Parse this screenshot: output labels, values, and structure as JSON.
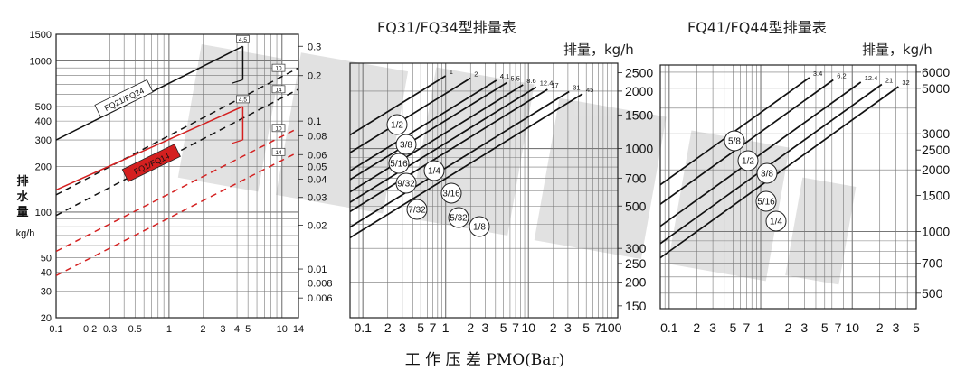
{
  "caption": "工 作 压 差 PMO(Bar)",
  "chart_data": [
    {
      "type": "line",
      "id": "fq21",
      "xlim": [
        0.1,
        14
      ],
      "ylim": [
        20,
        1500
      ],
      "x_scale": "log",
      "y_scale": "log",
      "ylabel": [
        "排",
        "水",
        "量"
      ],
      "yunit": "kg/h",
      "x_ticks": [
        {
          "v": 0.1,
          "t": "0.1"
        },
        {
          "v": 0.2,
          "t": "0.2"
        },
        {
          "v": 0.3,
          "t": "0.3"
        },
        {
          "v": 0.5,
          "t": "0.5"
        },
        {
          "v": 1,
          "t": "1"
        },
        {
          "v": 2,
          "t": "2"
        },
        {
          "v": 3,
          "t": "3"
        },
        {
          "v": 4,
          "t": "4"
        },
        {
          "v": 5,
          "t": "5"
        },
        {
          "v": 10,
          "t": "10"
        },
        {
          "v": 14,
          "t": "14"
        }
      ],
      "y_ticks": [
        {
          "v": 1500,
          "t": "1500"
        },
        {
          "v": 1000,
          "t": "1000"
        },
        {
          "v": 500,
          "t": "500"
        },
        {
          "v": 400,
          "t": "400"
        },
        {
          "v": 300,
          "t": "300"
        },
        {
          "v": 200,
          "t": "200"
        },
        {
          "v": 100,
          "t": "100"
        },
        {
          "v": 50,
          "t": "50"
        },
        {
          "v": 40,
          "t": "40"
        },
        {
          "v": 30,
          "t": "30"
        },
        {
          "v": 20,
          "t": "20"
        }
      ],
      "right_ticks": [
        {
          "v": 1250,
          "t": "0.3"
        },
        {
          "v": 800,
          "t": "0.2"
        },
        {
          "v": 400,
          "t": "0.1"
        },
        {
          "v": 320,
          "t": "0.08"
        },
        {
          "v": 240,
          "t": "0.06"
        },
        {
          "v": 200,
          "t": "0.05"
        },
        {
          "v": 165,
          "t": "0.04"
        },
        {
          "v": 125,
          "t": "0.03"
        },
        {
          "v": 82,
          "t": "0.02"
        },
        {
          "v": 42,
          "t": "0.01"
        },
        {
          "v": 34,
          "t": "0.008"
        },
        {
          "v": 27,
          "t": "0.006"
        }
      ],
      "series": [
        {
          "group": "FQ21/FQ24",
          "style": "solid",
          "color": "#111111",
          "points": [
            [
              0.1,
              300
            ],
            [
              4.5,
              1250
            ]
          ],
          "tag": "4.5",
          "drop": 4.5
        },
        {
          "group": "FQ21/FQ24",
          "style": "dashed",
          "color": "#111111",
          "points": [
            [
              0.1,
              130
            ],
            [
              14,
              900
            ]
          ],
          "tag": "10"
        },
        {
          "group": "FQ21/FQ24",
          "style": "dashed",
          "color": "#111111",
          "points": [
            [
              0.1,
              95
            ],
            [
              14,
              650
            ]
          ],
          "tag": "14"
        },
        {
          "group": "FQ1/FQ14",
          "style": "solid",
          "color": "#d42020",
          "points": [
            [
              0.1,
              140
            ],
            [
              4.5,
              500
            ]
          ],
          "tag": "4.5",
          "drop": 4.5
        },
        {
          "group": "FQ1/FQ14",
          "style": "dashed",
          "color": "#d42020",
          "points": [
            [
              0.1,
              55
            ],
            [
              14,
              360
            ]
          ],
          "tag": "10"
        },
        {
          "group": "FQ1/FQ14",
          "style": "dashed",
          "color": "#d42020",
          "points": [
            [
              0.1,
              38
            ],
            [
              14,
              250
            ]
          ],
          "tag": "14"
        }
      ],
      "group_labels": [
        {
          "t": "FQ21/FQ24",
          "color": "#111111",
          "x": 0.4,
          "y": 560
        },
        {
          "t": "FQ1/FQ14",
          "color": "#d42020",
          "x": 0.7,
          "y": 210
        }
      ]
    },
    {
      "type": "line",
      "id": "fq31",
      "title": "FQ31/FQ34型排量表",
      "yunit": "排量，kg/h",
      "xlim": [
        0.07,
        120
      ],
      "ylim": [
        130,
        2800
      ],
      "x_scale": "log",
      "y_scale": "log",
      "x_ticks": [
        {
          "v": 0.1,
          "t": "0.1"
        },
        {
          "v": 0.2,
          "t": "2"
        },
        {
          "v": 0.3,
          "t": "3"
        },
        {
          "v": 0.5,
          "t": "5"
        },
        {
          "v": 0.7,
          "t": "7"
        },
        {
          "v": 1,
          "t": "1"
        },
        {
          "v": 2,
          "t": "2"
        },
        {
          "v": 3,
          "t": "3"
        },
        {
          "v": 5,
          "t": "5"
        },
        {
          "v": 7,
          "t": "7"
        },
        {
          "v": 10,
          "t": "10"
        },
        {
          "v": 20,
          "t": "2"
        },
        {
          "v": 30,
          "t": "3"
        },
        {
          "v": 50,
          "t": "5"
        },
        {
          "v": 70,
          "t": "7"
        },
        {
          "v": 100,
          "t": "100"
        }
      ],
      "y_ticks": [
        {
          "v": 2500,
          "t": "2500"
        },
        {
          "v": 2000,
          "t": "2000"
        },
        {
          "v": 1500,
          "t": "1500"
        },
        {
          "v": 1000,
          "t": "1000"
        },
        {
          "v": 700,
          "t": "700"
        },
        {
          "v": 500,
          "t": "500"
        },
        {
          "v": 300,
          "t": "300"
        },
        {
          "v": 250,
          "t": "250"
        },
        {
          "v": 200,
          "t": "200"
        },
        {
          "v": 150,
          "t": "150"
        }
      ],
      "line_tops": [
        {
          "t": "1",
          "x": 1
        },
        {
          "t": "2",
          "x": 2
        },
        {
          "t": "4.1",
          "x": 4.1
        },
        {
          "t": "5.5",
          "x": 5.5
        },
        {
          "t": "8.6",
          "x": 8.6
        },
        {
          "t": "12.4",
          "x": 12.4
        },
        {
          "t": "17",
          "x": 17
        },
        {
          "t": "31",
          "x": 31
        },
        {
          "t": "45",
          "x": 45
        }
      ],
      "orifices": [
        "1/2",
        "3/8",
        "5/16",
        "1/4",
        "9/32",
        "3/16",
        "7/32",
        "5/32",
        "1/8"
      ]
    },
    {
      "type": "line",
      "id": "fq41",
      "title": "FQ41/FQ44型排量表",
      "yunit": "排量，kg/h",
      "xlim": [
        0.08,
        50
      ],
      "ylim": [
        420,
        6500
      ],
      "x_scale": "log",
      "y_scale": "log",
      "x_ticks": [
        {
          "v": 0.1,
          "t": "0.1"
        },
        {
          "v": 0.2,
          "t": "2"
        },
        {
          "v": 0.3,
          "t": "3"
        },
        {
          "v": 0.5,
          "t": "5"
        },
        {
          "v": 0.7,
          "t": "7"
        },
        {
          "v": 1,
          "t": "1"
        },
        {
          "v": 2,
          "t": "2"
        },
        {
          "v": 3,
          "t": "3"
        },
        {
          "v": 5,
          "t": "5"
        },
        {
          "v": 7,
          "t": "7"
        },
        {
          "v": 10,
          "t": "10"
        },
        {
          "v": 20,
          "t": "2"
        },
        {
          "v": 30,
          "t": "3"
        },
        {
          "v": 50,
          "t": "5"
        }
      ],
      "y_ticks": [
        {
          "v": 6000,
          "t": "6000"
        },
        {
          "v": 5000,
          "t": "5000"
        },
        {
          "v": 3000,
          "t": "3000"
        },
        {
          "v": 2500,
          "t": "2500"
        },
        {
          "v": 2000,
          "t": "2000"
        },
        {
          "v": 1500,
          "t": "1500"
        },
        {
          "v": 1000,
          "t": "1000"
        },
        {
          "v": 700,
          "t": "700"
        },
        {
          "v": 500,
          "t": "500"
        }
      ],
      "line_tops": [
        {
          "t": "3.4",
          "x": 3.4
        },
        {
          "t": "6.2",
          "x": 6.2
        },
        {
          "t": "12.4",
          "x": 12.4
        },
        {
          "t": "21",
          "x": 21
        },
        {
          "t": "32",
          "x": 32
        }
      ],
      "orifices": [
        "5/8",
        "1/2",
        "3/8",
        "5/16",
        "1/4"
      ]
    }
  ]
}
